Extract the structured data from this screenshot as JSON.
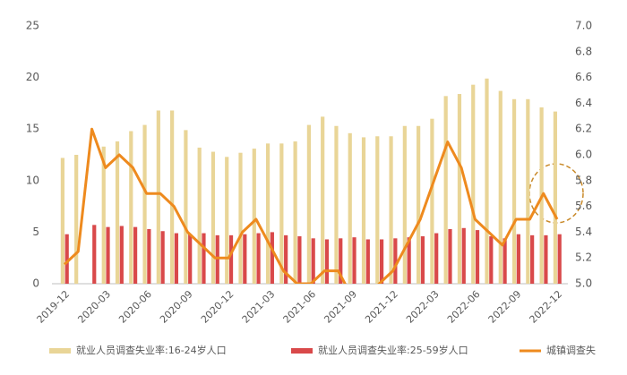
{
  "chart_data": {
    "type": "bar-line",
    "categories": [
      "2019-12",
      null,
      null,
      "2020-03",
      null,
      null,
      "2020-06",
      null,
      null,
      "2020-09",
      null,
      null,
      "2020-12",
      null,
      null,
      "2021-03",
      null,
      null,
      "2021-06",
      null,
      null,
      "2021-09",
      null,
      null,
      "2021-12",
      null,
      null,
      "2022-03",
      null,
      null,
      "2022-06",
      null,
      null,
      "2022-09",
      null,
      null,
      "2022-12"
    ],
    "series": [
      {
        "name": "就业人员调查失业率:16-24岁人口",
        "type": "bar",
        "color": "#e9d597",
        "values": [
          12.2,
          12.5,
          null,
          13.3,
          13.8,
          14.8,
          15.4,
          16.8,
          16.8,
          14.9,
          13.2,
          12.8,
          12.3,
          12.7,
          13.1,
          13.6,
          13.6,
          13.8,
          15.4,
          16.2,
          15.3,
          14.6,
          14.2,
          14.3,
          14.3,
          15.3,
          15.3,
          16.0,
          18.2,
          18.4,
          19.3,
          19.9,
          18.7,
          17.9,
          17.9,
          17.1,
          16.7
        ]
      },
      {
        "name": "就业人员调查失业率:25-59岁人口",
        "type": "bar",
        "color": "#d9494a",
        "values": [
          4.8,
          null,
          5.7,
          5.5,
          5.6,
          5.5,
          5.3,
          5.1,
          4.9,
          4.8,
          4.9,
          4.7,
          4.7,
          4.8,
          4.9,
          5.0,
          4.7,
          4.6,
          4.4,
          4.3,
          4.4,
          4.5,
          4.3,
          4.3,
          4.4,
          4.5,
          4.6,
          4.9,
          5.3,
          5.4,
          5.2,
          4.6,
          4.4,
          4.8,
          4.7,
          4.7,
          4.8
        ]
      },
      {
        "name": "城镇调查失",
        "type": "line",
        "axis": "y2",
        "color": "#ee8a1e",
        "values": [
          5.15,
          5.25,
          6.2,
          5.9,
          6.0,
          5.9,
          5.7,
          5.7,
          5.6,
          5.4,
          5.3,
          5.2,
          5.2,
          5.4,
          5.5,
          5.3,
          5.1,
          5.0,
          5.0,
          5.1,
          5.1,
          4.9,
          4.9,
          5.0,
          5.1,
          5.3,
          5.5,
          5.8,
          6.1,
          5.9,
          5.5,
          5.4,
          5.3,
          5.5,
          5.5,
          5.7,
          5.5
        ]
      }
    ],
    "ylim": [
      0,
      25
    ],
    "yticks": [
      0,
      5,
      10,
      15,
      20,
      25
    ],
    "y2lim": [
      5.0,
      7.0
    ],
    "y2ticks": [
      {
        "value": 5.0,
        "label": "5.0"
      },
      {
        "value": 5.2,
        "label": "5.2"
      },
      {
        "value": 5.4,
        "label": "5.4"
      },
      {
        "value": 5.6,
        "label": "5.6"
      },
      {
        "value": 5.8,
        "label": "5.8"
      },
      {
        "value": 6.0,
        "label": "6.0"
      },
      {
        "value": 6.2,
        "label": "6.2"
      },
      {
        "value": 6.4,
        "label": "6.4"
      },
      {
        "value": 6.6,
        "label": "6.6"
      },
      {
        "value": 6.8,
        "label": "6.8"
      },
      {
        "value": 7.0,
        "label": "7.0"
      }
    ],
    "legend": "bottom"
  }
}
